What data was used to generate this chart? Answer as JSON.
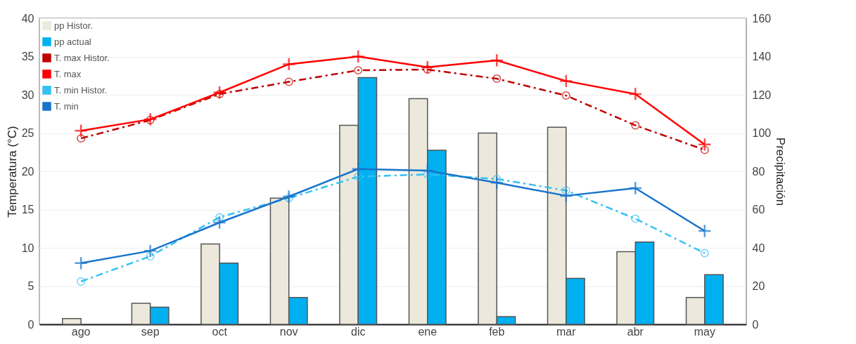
{
  "chart_data": {
    "type": "bar",
    "categories": [
      "ago",
      "sep",
      "oct",
      "nov",
      "dic",
      "ene",
      "feb",
      "mar",
      "abr",
      "may"
    ],
    "ylabel": "Temperatura (°C)",
    "y2label": "Precipitación",
    "ylim": [
      0,
      40
    ],
    "yticks": [
      0,
      5,
      10,
      15,
      20,
      25,
      30,
      35,
      40
    ],
    "y2lim": [
      0,
      160
    ],
    "y2ticks": [
      0,
      20,
      40,
      60,
      80,
      100,
      120,
      140,
      160
    ],
    "grid": "y",
    "legend": "top left",
    "series": [
      {
        "name": "pp Histor.",
        "type": "bar",
        "axis": "y2",
        "color": "#ece9dc",
        "values": [
          3,
          11,
          42,
          66,
          104,
          118,
          100,
          103,
          38,
          14
        ]
      },
      {
        "name": "pp actual",
        "type": "bar",
        "axis": "y2",
        "color": "#00b0f0",
        "values": [
          null,
          9,
          32,
          14,
          129,
          91,
          4,
          24,
          43,
          26
        ]
      },
      {
        "name": "T. max Histor.",
        "type": "line",
        "color": "#c00000",
        "marker": "circle",
        "line_style": "dashed",
        "values": [
          24.3,
          26.7,
          30.1,
          31.7,
          33.2,
          33.3,
          32.1,
          29.9,
          26,
          22.8
        ]
      },
      {
        "name": "T. max",
        "type": "line",
        "color": "#ff0000",
        "marker": "cross",
        "line_style": "solid",
        "values": [
          25.3,
          26.8,
          30.3,
          34,
          35,
          33.6,
          34.5,
          31.8,
          30.1,
          23.5
        ]
      },
      {
        "name": "T. min Histor.",
        "type": "line",
        "color": "#33c1f5",
        "marker": "circle",
        "line_style": "dashed",
        "values": [
          5.6,
          8.9,
          14,
          16.5,
          19.3,
          19.6,
          19,
          17.5,
          13.8,
          9.3
        ]
      },
      {
        "name": "T. min",
        "type": "line",
        "color": "#1874cd",
        "marker": "cross",
        "line_style": "solid",
        "values": [
          8,
          9.6,
          13.3,
          16.7,
          20.3,
          20.1,
          18.5,
          16.8,
          17.8,
          12.2
        ]
      }
    ]
  }
}
